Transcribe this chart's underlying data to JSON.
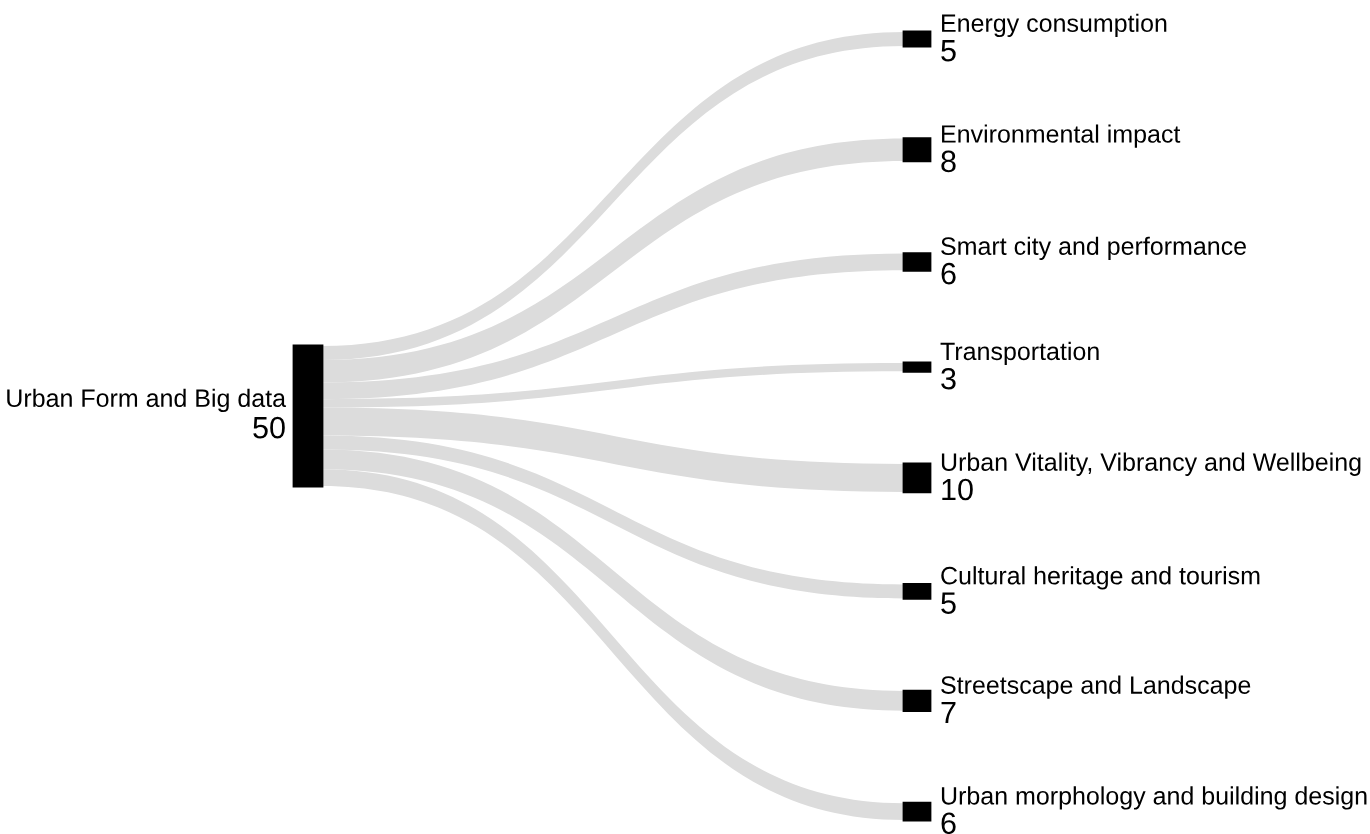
{
  "chart_data": {
    "type": "other",
    "categories": [
      "Urban Form and Big data",
      "Energy consumption",
      "Environmental impact",
      "Smart city and performance",
      "Transportation",
      "Urban Vitality, Vibrancy and Wellbeing",
      "Cultural heritage and tourism",
      "Streetscape and Landscape",
      "Urban morphology and building design"
    ],
    "values": [
      50,
      5,
      8,
      6,
      3,
      10,
      5,
      7,
      6
    ],
    "colors": [
      "#000000",
      "#000000",
      "#000000",
      "#000000",
      "#000000",
      "#000000",
      "#000000",
      "#000000",
      "#000000"
    ],
    "color": "#dcdcdc",
    "data_labels": true
  }
}
